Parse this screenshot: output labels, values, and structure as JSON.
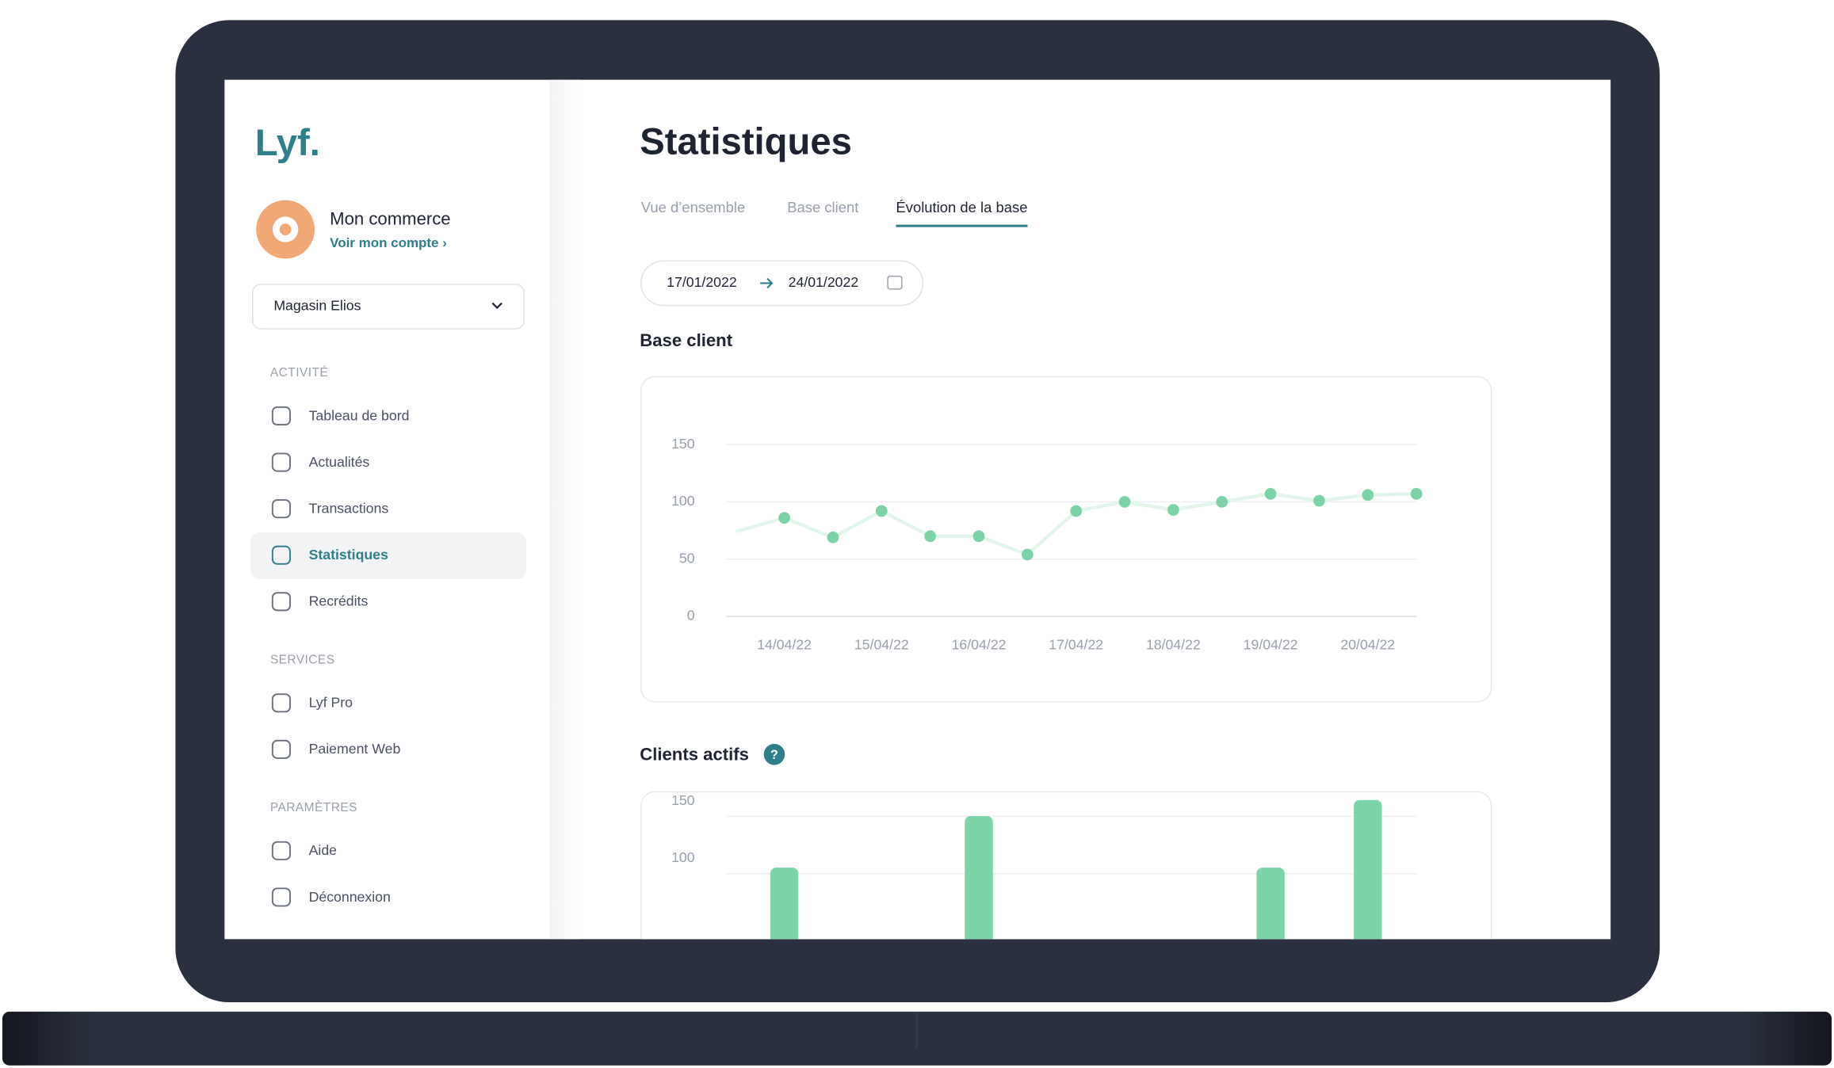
{
  "sidebar": {
    "logo": "Lyf.",
    "account_name": "Mon commerce",
    "account_link": "Voir mon compte ›",
    "store": "Magasin Elios",
    "sections": [
      {
        "title": "ACTIVITÉ",
        "items": [
          "Tableau de bord",
          "Actualités",
          "Transactions",
          "Statistiques",
          "Recrédits"
        ]
      },
      {
        "title": "SERVICES",
        "items": [
          "Lyf Pro",
          "Paiement Web"
        ]
      },
      {
        "title": "PARAMÈTRES",
        "items": [
          "Aide",
          "Déconnexion"
        ]
      }
    ]
  },
  "page": {
    "title": "Statistiques",
    "tabs": [
      "Vue d’ensemble",
      "Base client",
      "Évolution de la base"
    ],
    "date_from": "17/01/2022",
    "date_to": "24/01/2022",
    "section_1": "Base client",
    "section_2": "Clients actifs",
    "help": "?"
  },
  "chart_data": [
    {
      "type": "line",
      "categories": [
        null,
        "14/04/22",
        null,
        "15/04/22",
        null,
        "16/04/22",
        null,
        "17/04/22",
        null,
        "18/04/22",
        null,
        "19/04/22",
        null,
        "20/04/22",
        null
      ],
      "values": [
        74,
        86,
        69,
        92,
        70,
        70,
        54,
        92,
        100,
        93,
        100,
        107,
        101,
        106,
        107
      ],
      "color": "#7dd3a8",
      "line_color": "#e2f5eb",
      "ylim": [
        0,
        150
      ],
      "yticks": [
        0,
        50,
        100,
        150
      ],
      "grid": true
    },
    {
      "type": "bar",
      "values": [
        null,
        92,
        null,
        null,
        null,
        137,
        null,
        null,
        null,
        null,
        null,
        92,
        null,
        151,
        null
      ],
      "color": "#7dd3a8",
      "ylim": [
        0,
        150
      ],
      "yticks": [
        100,
        150
      ],
      "grid": true
    }
  ]
}
